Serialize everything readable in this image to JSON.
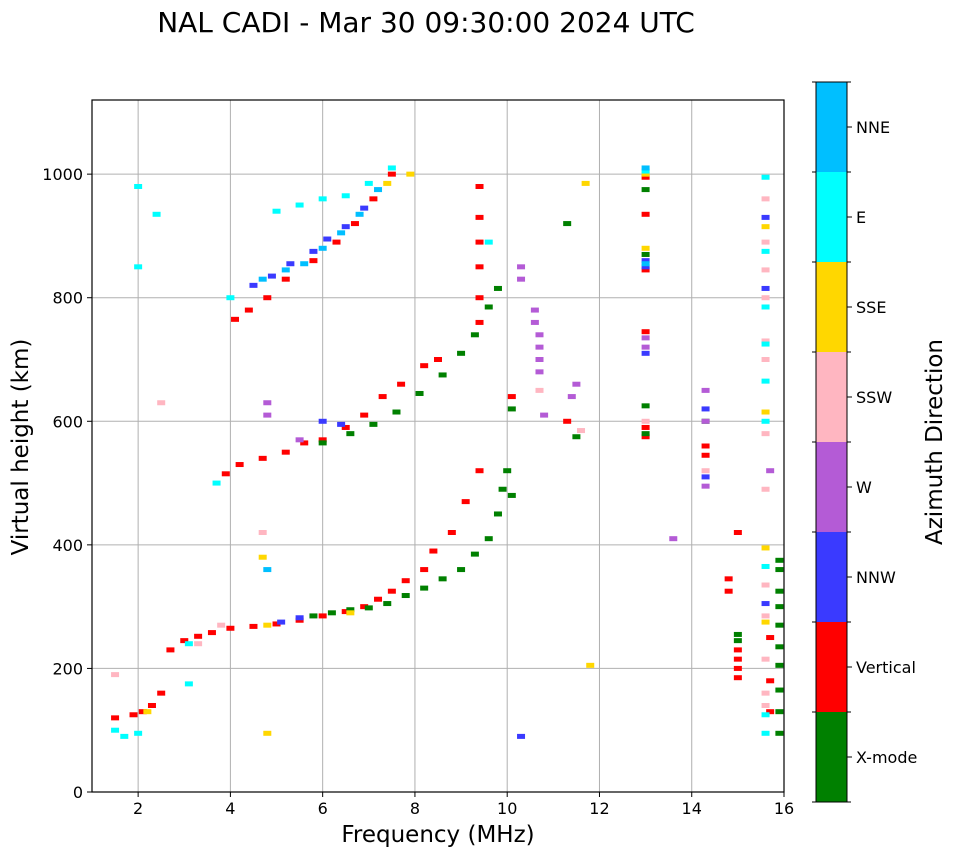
{
  "chart_data": {
    "type": "scatter",
    "title": "NAL CADI - Mar 30 09:30:00 2024 UTC",
    "xlabel": "Frequency (MHz)",
    "ylabel": "Virtual height (km)",
    "xlim": [
      1,
      16
    ],
    "ylim": [
      0,
      1120
    ],
    "xticks": [
      2,
      4,
      6,
      8,
      10,
      12,
      14,
      16
    ],
    "yticks": [
      0,
      200,
      400,
      600,
      800,
      1000
    ],
    "grid": true,
    "colorbar": {
      "title": "Azimuth Direction",
      "categories": [
        {
          "name": "X-mode",
          "color": "#008000"
        },
        {
          "name": "Vertical",
          "color": "#ff0000"
        },
        {
          "name": "NNW",
          "color": "#3a3aff"
        },
        {
          "name": "W",
          "color": "#b45bd6"
        },
        {
          "name": "SSW",
          "color": "#ffb6c1"
        },
        {
          "name": "SSE",
          "color": "#ffd700"
        },
        {
          "name": "E",
          "color": "#00ffff"
        },
        {
          "name": "NNE",
          "color": "#00bfff"
        }
      ]
    },
    "series": [
      {
        "name": "Vertical",
        "points": [
          [
            1.5,
            120
          ],
          [
            1.9,
            125
          ],
          [
            2.1,
            130
          ],
          [
            2.3,
            140
          ],
          [
            2.5,
            160
          ],
          [
            2.7,
            230
          ],
          [
            3.0,
            245
          ],
          [
            3.3,
            252
          ],
          [
            3.6,
            258
          ],
          [
            4.0,
            265
          ],
          [
            4.5,
            268
          ],
          [
            5.0,
            272
          ],
          [
            5.5,
            278
          ],
          [
            6.0,
            285
          ],
          [
            6.5,
            292
          ],
          [
            6.9,
            300
          ],
          [
            7.2,
            312
          ],
          [
            7.5,
            325
          ],
          [
            7.8,
            342
          ],
          [
            8.2,
            360
          ],
          [
            8.4,
            390
          ],
          [
            8.8,
            420
          ],
          [
            9.1,
            470
          ],
          [
            9.4,
            520
          ],
          [
            3.9,
            515
          ],
          [
            4.2,
            530
          ],
          [
            4.7,
            540
          ],
          [
            5.2,
            550
          ],
          [
            5.6,
            565
          ],
          [
            6.0,
            570
          ],
          [
            6.5,
            590
          ],
          [
            6.9,
            610
          ],
          [
            7.3,
            640
          ],
          [
            7.7,
            660
          ],
          [
            8.2,
            690
          ],
          [
            8.5,
            700
          ],
          [
            4.1,
            765
          ],
          [
            4.4,
            780
          ],
          [
            4.8,
            800
          ],
          [
            5.2,
            830
          ],
          [
            5.8,
            860
          ],
          [
            6.3,
            890
          ],
          [
            6.7,
            920
          ],
          [
            7.1,
            960
          ],
          [
            7.5,
            1000
          ],
          [
            9.4,
            980
          ],
          [
            9.4,
            930
          ],
          [
            9.4,
            890
          ],
          [
            9.4,
            850
          ],
          [
            9.4,
            800
          ],
          [
            9.4,
            760
          ],
          [
            10.1,
            640
          ],
          [
            11.3,
            600
          ],
          [
            15.0,
            185
          ],
          [
            15.0,
            200
          ],
          [
            15.0,
            215
          ],
          [
            15.0,
            230
          ],
          [
            14.8,
            345
          ],
          [
            14.8,
            325
          ],
          [
            15.0,
            420
          ],
          [
            13.0,
            575
          ],
          [
            13.0,
            590
          ],
          [
            13.0,
            745
          ],
          [
            13.0,
            845
          ],
          [
            13.0,
            935
          ],
          [
            13.0,
            995
          ],
          [
            14.3,
            560
          ],
          [
            14.3,
            545
          ],
          [
            15.7,
            130
          ],
          [
            15.7,
            180
          ],
          [
            15.7,
            250
          ]
        ]
      },
      {
        "name": "X-mode",
        "points": [
          [
            5.8,
            285
          ],
          [
            6.2,
            290
          ],
          [
            6.6,
            295
          ],
          [
            7.0,
            298
          ],
          [
            7.4,
            305
          ],
          [
            7.8,
            318
          ],
          [
            8.2,
            330
          ],
          [
            8.6,
            345
          ],
          [
            9.0,
            360
          ],
          [
            9.3,
            385
          ],
          [
            9.6,
            410
          ],
          [
            9.8,
            450
          ],
          [
            9.9,
            490
          ],
          [
            10.0,
            520
          ],
          [
            10.1,
            480
          ],
          [
            6.0,
            565
          ],
          [
            6.6,
            580
          ],
          [
            7.1,
            595
          ],
          [
            7.6,
            615
          ],
          [
            8.1,
            645
          ],
          [
            8.6,
            675
          ],
          [
            9.0,
            710
          ],
          [
            9.3,
            740
          ],
          [
            9.6,
            785
          ],
          [
            9.8,
            815
          ],
          [
            10.1,
            620
          ],
          [
            11.5,
            575
          ],
          [
            15.0,
            245
          ],
          [
            15.0,
            255
          ],
          [
            15.9,
            95
          ],
          [
            15.9,
            130
          ],
          [
            15.9,
            165
          ],
          [
            15.9,
            205
          ],
          [
            15.9,
            235
          ],
          [
            15.9,
            270
          ],
          [
            15.9,
            300
          ],
          [
            15.9,
            325
          ],
          [
            15.9,
            360
          ],
          [
            15.9,
            375
          ],
          [
            13.0,
            580
          ],
          [
            13.0,
            625
          ],
          [
            13.0,
            870
          ],
          [
            13.0,
            975
          ],
          [
            14.3,
            600
          ],
          [
            11.3,
            920
          ]
        ]
      },
      {
        "name": "NNW",
        "points": [
          [
            4.5,
            820
          ],
          [
            4.9,
            835
          ],
          [
            5.3,
            855
          ],
          [
            5.8,
            875
          ],
          [
            6.1,
            895
          ],
          [
            6.5,
            915
          ],
          [
            6.9,
            945
          ],
          [
            5.1,
            275
          ],
          [
            5.5,
            282
          ],
          [
            6.0,
            600
          ],
          [
            6.4,
            595
          ],
          [
            13.0,
            850
          ],
          [
            13.0,
            860
          ],
          [
            13.0,
            710
          ],
          [
            14.3,
            510
          ],
          [
            15.6,
            815
          ],
          [
            15.6,
            930
          ],
          [
            15.6,
            305
          ],
          [
            10.3,
            90
          ],
          [
            14.3,
            620
          ]
        ]
      },
      {
        "name": "W",
        "points": [
          [
            10.6,
            780
          ],
          [
            10.6,
            760
          ],
          [
            10.7,
            740
          ],
          [
            10.7,
            720
          ],
          [
            10.7,
            700
          ],
          [
            10.7,
            680
          ],
          [
            10.3,
            850
          ],
          [
            10.3,
            830
          ],
          [
            10.8,
            610
          ],
          [
            11.5,
            660
          ],
          [
            11.4,
            640
          ],
          [
            13.0,
            720
          ],
          [
            13.0,
            735
          ],
          [
            14.3,
            650
          ],
          [
            14.3,
            600
          ],
          [
            14.3,
            495
          ],
          [
            4.8,
            630
          ],
          [
            4.8,
            610
          ],
          [
            5.5,
            570
          ],
          [
            13.6,
            410
          ],
          [
            15.7,
            520
          ]
        ]
      },
      {
        "name": "SSW",
        "points": [
          [
            1.5,
            190
          ],
          [
            2.5,
            630
          ],
          [
            3.3,
            240
          ],
          [
            3.8,
            270
          ],
          [
            4.7,
            420
          ],
          [
            10.7,
            650
          ],
          [
            11.6,
            585
          ],
          [
            13.0,
            600
          ],
          [
            14.3,
            520
          ],
          [
            15.6,
            140
          ],
          [
            15.6,
            160
          ],
          [
            15.6,
            215
          ],
          [
            15.6,
            285
          ],
          [
            15.6,
            335
          ],
          [
            15.6,
            490
          ],
          [
            15.6,
            580
          ],
          [
            15.6,
            700
          ],
          [
            15.6,
            730
          ],
          [
            15.6,
            800
          ],
          [
            15.6,
            845
          ],
          [
            15.6,
            890
          ],
          [
            15.6,
            960
          ]
        ]
      },
      {
        "name": "SSE",
        "points": [
          [
            2.2,
            130
          ],
          [
            4.7,
            380
          ],
          [
            4.8,
            95
          ],
          [
            7.4,
            985
          ],
          [
            7.9,
            1000
          ],
          [
            11.7,
            985
          ],
          [
            11.8,
            205
          ],
          [
            13.0,
            880
          ],
          [
            13.0,
            1000
          ],
          [
            15.6,
            275
          ],
          [
            15.6,
            395
          ],
          [
            15.6,
            615
          ],
          [
            15.6,
            915
          ],
          [
            4.8,
            270
          ],
          [
            6.6,
            290
          ]
        ]
      },
      {
        "name": "E",
        "points": [
          [
            1.5,
            100
          ],
          [
            1.7,
            90
          ],
          [
            2.0,
            95
          ],
          [
            3.1,
            240
          ],
          [
            3.7,
            500
          ],
          [
            4.0,
            800
          ],
          [
            5.0,
            940
          ],
          [
            5.5,
            950
          ],
          [
            6.0,
            960
          ],
          [
            6.5,
            965
          ],
          [
            7.0,
            985
          ],
          [
            7.5,
            1010
          ],
          [
            2.0,
            980
          ],
          [
            2.0,
            850
          ],
          [
            2.4,
            935
          ],
          [
            9.6,
            890
          ],
          [
            15.6,
            95
          ],
          [
            15.6,
            125
          ],
          [
            15.6,
            365
          ],
          [
            15.6,
            600
          ],
          [
            15.6,
            665
          ],
          [
            15.6,
            725
          ],
          [
            15.6,
            785
          ],
          [
            15.6,
            875
          ],
          [
            15.6,
            995
          ],
          [
            13.0,
            1005
          ],
          [
            3.1,
            175
          ]
        ]
      },
      {
        "name": "NNE",
        "points": [
          [
            4.7,
            830
          ],
          [
            5.2,
            845
          ],
          [
            5.6,
            855
          ],
          [
            6.0,
            880
          ],
          [
            6.4,
            905
          ],
          [
            6.8,
            935
          ],
          [
            7.2,
            975
          ],
          [
            13.0,
            1010
          ],
          [
            13.0,
            855
          ],
          [
            4.8,
            360
          ]
        ]
      }
    ]
  }
}
